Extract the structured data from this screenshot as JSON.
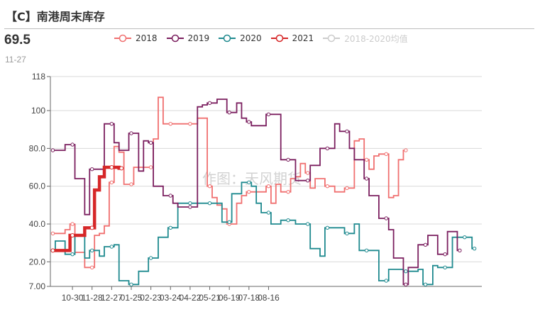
{
  "title": "【C】南港周末库存",
  "current": {
    "value": "69.5",
    "date": "11-27"
  },
  "watermark": "作图：天风期货",
  "legend": [
    {
      "label": "2018",
      "color": "#f07070",
      "active": true
    },
    {
      "label": "2019",
      "color": "#7b1f5f",
      "active": true
    },
    {
      "label": "2020",
      "color": "#1f8a8f",
      "active": true
    },
    {
      "label": "2021",
      "color": "#d62728",
      "active": true
    },
    {
      "label": "2018-2020均值",
      "color": "#cccccc",
      "active": false
    }
  ],
  "chart_data": {
    "type": "line",
    "title": "【C】南港周末库存",
    "xlabel": "",
    "ylabel": "",
    "x_ticks": [
      "10-30",
      "11-28",
      "12-27",
      "01-25",
      "02-23",
      "03-24",
      "04-22",
      "05-21",
      "06-19",
      "07-18",
      "08-16"
    ],
    "y_ticks": [
      "7.00",
      "20.0",
      "40.0",
      "60.0",
      "80.0",
      "100",
      "118"
    ],
    "ylim": [
      7,
      118
    ],
    "grid": true,
    "legend_position": "top",
    "x_unit": "week index (1 = first week, tick 10-30 at week 5, then every 4 weeks)",
    "series": [
      {
        "name": "2018",
        "color": "#f07070",
        "step": true,
        "points": [
          [
            1,
            35
          ],
          [
            2,
            35
          ],
          [
            3,
            35
          ],
          [
            4,
            37
          ],
          [
            5,
            40
          ],
          [
            6,
            25
          ],
          [
            7,
            25
          ],
          [
            8,
            17
          ],
          [
            9,
            17
          ],
          [
            10,
            34
          ],
          [
            11,
            35
          ],
          [
            12,
            39
          ],
          [
            13,
            62
          ],
          [
            14,
            81
          ],
          [
            15,
            78
          ],
          [
            16,
            61
          ],
          [
            17,
            61
          ],
          [
            18,
            70
          ],
          [
            19,
            70
          ],
          [
            20,
            70
          ],
          [
            21,
            70
          ],
          [
            22,
            85
          ],
          [
            23,
            107
          ],
          [
            24,
            93
          ],
          [
            25,
            93
          ],
          [
            26,
            93
          ],
          [
            27,
            93
          ],
          [
            28,
            93
          ],
          [
            29,
            93
          ],
          [
            30,
            93
          ],
          [
            31,
            96
          ],
          [
            32,
            96
          ],
          [
            33,
            60
          ],
          [
            34,
            54
          ],
          [
            35,
            50
          ],
          [
            36,
            48
          ],
          [
            37,
            40
          ],
          [
            38,
            40
          ],
          [
            39,
            51
          ],
          [
            40,
            55
          ],
          [
            41,
            57
          ],
          [
            42,
            57
          ],
          [
            43,
            57
          ],
          [
            44,
            57
          ],
          [
            45,
            60
          ],
          [
            46,
            51
          ],
          [
            47,
            61
          ],
          [
            48,
            57
          ],
          [
            49,
            57
          ],
          [
            50,
            64
          ],
          [
            51,
            65
          ],
          [
            52,
            72
          ],
          [
            53,
            67
          ],
          [
            54,
            59
          ],
          [
            55,
            64
          ],
          [
            56,
            64
          ],
          [
            57,
            60
          ],
          [
            58,
            60
          ],
          [
            59,
            57
          ],
          [
            60,
            57
          ],
          [
            61,
            59
          ],
          [
            62,
            59
          ],
          [
            63,
            84
          ],
          [
            64,
            85
          ],
          [
            65,
            74
          ],
          [
            66,
            69
          ],
          [
            67,
            76
          ],
          [
            68,
            77
          ],
          [
            69,
            77
          ],
          [
            70,
            54
          ],
          [
            71,
            55
          ],
          [
            72,
            74
          ],
          [
            73,
            79
          ]
        ]
      },
      {
        "name": "2019",
        "color": "#7b1f5f",
        "step": true,
        "points": [
          [
            1,
            79
          ],
          [
            2,
            79
          ],
          [
            3,
            79
          ],
          [
            4,
            82
          ],
          [
            5,
            82
          ],
          [
            6,
            64
          ],
          [
            7,
            64
          ],
          [
            8,
            45
          ],
          [
            9,
            69
          ],
          [
            10,
            69
          ],
          [
            11,
            69
          ],
          [
            12,
            93
          ],
          [
            13,
            93
          ],
          [
            14,
            83
          ],
          [
            15,
            79
          ],
          [
            16,
            79
          ],
          [
            17,
            88
          ],
          [
            18,
            88
          ],
          [
            19,
            68
          ],
          [
            20,
            84
          ],
          [
            21,
            83
          ],
          [
            22,
            60
          ],
          [
            23,
            60
          ],
          [
            24,
            55
          ],
          [
            25,
            55
          ],
          [
            26,
            51
          ],
          [
            27,
            49
          ],
          [
            28,
            49
          ],
          [
            29,
            49
          ],
          [
            30,
            49
          ],
          [
            31,
            102
          ],
          [
            32,
            103
          ],
          [
            33,
            104
          ],
          [
            34,
            104
          ],
          [
            35,
            106
          ],
          [
            36,
            106
          ],
          [
            37,
            99
          ],
          [
            38,
            99
          ],
          [
            39,
            104
          ],
          [
            40,
            96
          ],
          [
            41,
            94
          ],
          [
            42,
            92
          ],
          [
            43,
            92
          ],
          [
            44,
            92
          ],
          [
            45,
            98
          ],
          [
            46,
            98
          ],
          [
            47,
            98
          ],
          [
            48,
            74
          ],
          [
            49,
            74
          ],
          [
            50,
            74
          ],
          [
            51,
            63
          ],
          [
            52,
            63
          ],
          [
            53,
            63
          ],
          [
            54,
            71
          ],
          [
            55,
            71
          ],
          [
            56,
            80
          ],
          [
            57,
            80
          ],
          [
            58,
            80
          ],
          [
            59,
            93
          ],
          [
            60,
            89
          ],
          [
            61,
            89
          ],
          [
            62,
            80
          ],
          [
            63,
            74
          ],
          [
            64,
            74
          ],
          [
            65,
            64
          ],
          [
            66,
            55
          ],
          [
            67,
            55
          ],
          [
            68,
            43
          ],
          [
            69,
            43
          ],
          [
            70,
            37
          ],
          [
            71,
            22
          ],
          [
            72,
            22
          ],
          [
            73,
            8
          ],
          [
            74,
            17
          ],
          [
            75,
            17
          ],
          [
            76,
            29
          ],
          [
            77,
            29
          ],
          [
            78,
            34
          ],
          [
            79,
            34
          ],
          [
            80,
            24
          ],
          [
            81,
            24
          ],
          [
            82,
            36
          ],
          [
            83,
            36
          ],
          [
            84,
            26
          ]
        ]
      },
      {
        "name": "2020",
        "color": "#1f8a8f",
        "step": true,
        "points": [
          [
            1,
            26
          ],
          [
            2,
            31
          ],
          [
            3,
            31
          ],
          [
            4,
            24
          ],
          [
            5,
            24
          ],
          [
            6,
            34
          ],
          [
            7,
            34
          ],
          [
            8,
            22
          ],
          [
            9,
            26
          ],
          [
            10,
            26
          ],
          [
            11,
            23
          ],
          [
            12,
            28
          ],
          [
            13,
            28
          ],
          [
            14,
            29
          ],
          [
            15,
            10
          ],
          [
            16,
            10
          ],
          [
            17,
            8
          ],
          [
            18,
            8
          ],
          [
            19,
            15
          ],
          [
            20,
            15
          ],
          [
            21,
            22
          ],
          [
            22,
            22
          ],
          [
            23,
            33
          ],
          [
            24,
            33
          ],
          [
            25,
            38
          ],
          [
            26,
            38
          ],
          [
            27,
            51
          ],
          [
            28,
            51
          ],
          [
            29,
            51
          ],
          [
            30,
            51
          ],
          [
            31,
            51
          ],
          [
            32,
            51
          ],
          [
            33,
            51
          ],
          [
            34,
            51
          ],
          [
            35,
            51
          ],
          [
            36,
            41
          ],
          [
            37,
            41
          ],
          [
            38,
            56
          ],
          [
            39,
            56
          ],
          [
            40,
            62
          ],
          [
            41,
            62
          ],
          [
            42,
            60
          ],
          [
            43,
            51
          ],
          [
            44,
            46
          ],
          [
            45,
            46
          ],
          [
            46,
            40
          ],
          [
            47,
            40
          ],
          [
            48,
            42
          ],
          [
            49,
            42
          ],
          [
            50,
            42
          ],
          [
            51,
            40
          ],
          [
            52,
            40
          ],
          [
            53,
            40
          ],
          [
            54,
            27
          ],
          [
            55,
            27
          ],
          [
            56,
            23
          ],
          [
            57,
            38
          ],
          [
            58,
            38
          ],
          [
            59,
            38
          ],
          [
            60,
            38
          ],
          [
            61,
            35
          ],
          [
            62,
            35
          ],
          [
            63,
            40
          ],
          [
            64,
            26
          ],
          [
            65,
            26
          ],
          [
            66,
            26
          ],
          [
            67,
            26
          ],
          [
            68,
            10
          ],
          [
            69,
            10
          ],
          [
            70,
            16
          ],
          [
            71,
            16
          ],
          [
            72,
            16
          ],
          [
            73,
            15
          ],
          [
            74,
            15
          ],
          [
            75,
            15
          ],
          [
            76,
            16
          ],
          [
            77,
            8
          ],
          [
            78,
            8
          ],
          [
            79,
            18
          ],
          [
            80,
            17
          ],
          [
            81,
            17
          ],
          [
            82,
            17
          ],
          [
            83,
            33
          ],
          [
            84,
            33
          ],
          [
            85,
            33
          ],
          [
            86,
            33
          ],
          [
            87,
            27
          ]
        ]
      },
      {
        "name": "2021",
        "color": "#d62728",
        "step": true,
        "points": [
          [
            1,
            26
          ],
          [
            2,
            26
          ],
          [
            3,
            26
          ],
          [
            4,
            26
          ],
          [
            5,
            34
          ],
          [
            6,
            34
          ],
          [
            7,
            34
          ],
          [
            8,
            38
          ],
          [
            9,
            38
          ],
          [
            10,
            58
          ],
          [
            11,
            65
          ],
          [
            12,
            70
          ],
          [
            13,
            70
          ],
          [
            14,
            70
          ],
          [
            15,
            69.5
          ]
        ]
      },
      {
        "name": "2018-2020均值",
        "color": "#cccccc",
        "step": true,
        "visible": false,
        "points": []
      }
    ]
  }
}
